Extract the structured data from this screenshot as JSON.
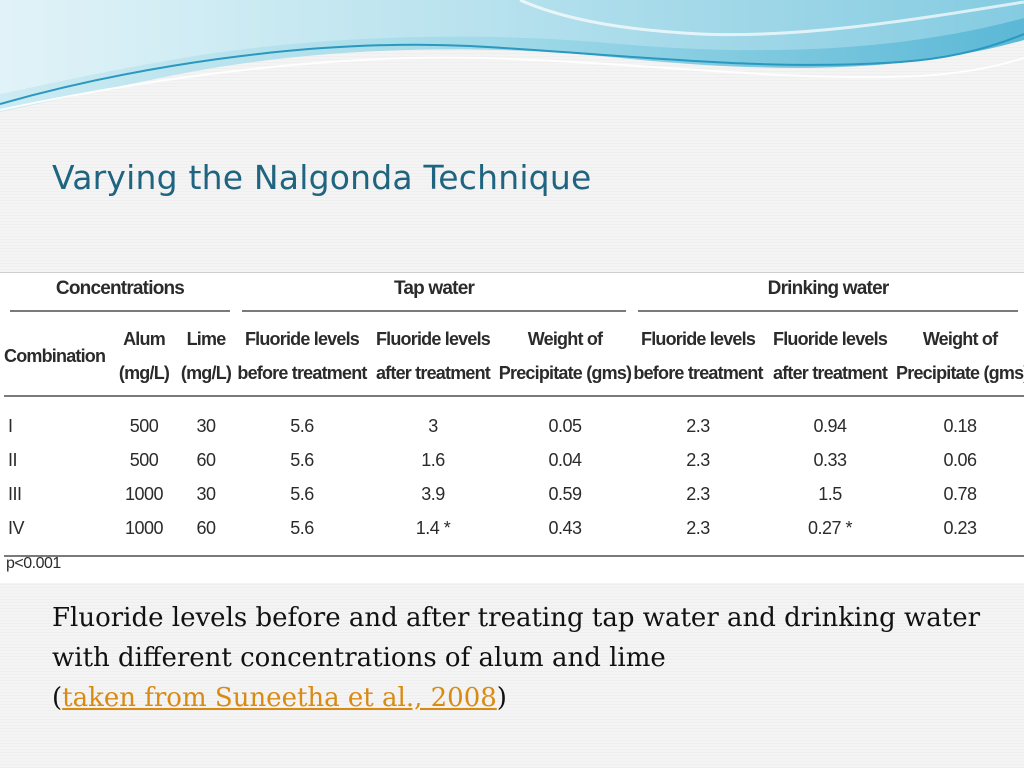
{
  "slide": {
    "title": "Varying the Nalgonda Technique"
  },
  "table": {
    "group_headers": {
      "concentrations": "Concentrations",
      "tap_water": "Tap water",
      "drinking_water": "Drinking water"
    },
    "column_headers": [
      [
        "Combination",
        ""
      ],
      [
        "Alum",
        "(mg/L)"
      ],
      [
        "Lime",
        "(mg/L)"
      ],
      [
        "Fluoride levels",
        "before treatment"
      ],
      [
        "Fluoride levels",
        "after treatment"
      ],
      [
        "Weight of",
        "Precipitate (gms)"
      ],
      [
        "Fluoride levels",
        "before treatment"
      ],
      [
        "Fluoride levels",
        "after treatment"
      ],
      [
        "Weight of",
        "Precipitate (gms)"
      ]
    ],
    "rows": [
      [
        "I",
        "500",
        "30",
        "5.6",
        "3",
        "0.05",
        "2.3",
        "0.94",
        "0.18"
      ],
      [
        "II",
        "500",
        "60",
        "5.6",
        "1.6",
        "0.04",
        "2.3",
        "0.33",
        "0.06"
      ],
      [
        "III",
        "1000",
        "30",
        "5.6",
        "3.9",
        "0.59",
        "2.3",
        "1.5",
        "0.78"
      ],
      [
        "IV",
        "1000",
        "60",
        "5.6",
        "1.4 *",
        "0.43",
        "2.3",
        "0.27 *",
        "0.23"
      ]
    ],
    "footnote": "p<0.001"
  },
  "caption": {
    "line1": "Fluoride levels before and after treating tap water and drinking water with different concentrations of alum and lime",
    "open_paren": "(",
    "link_text": "taken from Suneetha et al., 2008",
    "close_paren": ")"
  },
  "colors": {
    "title": "#1f6480",
    "link": "#d98a12",
    "wave_light": "#bfe6ef",
    "wave_mid": "#7fcbe0",
    "wave_dark": "#2a98bf"
  }
}
